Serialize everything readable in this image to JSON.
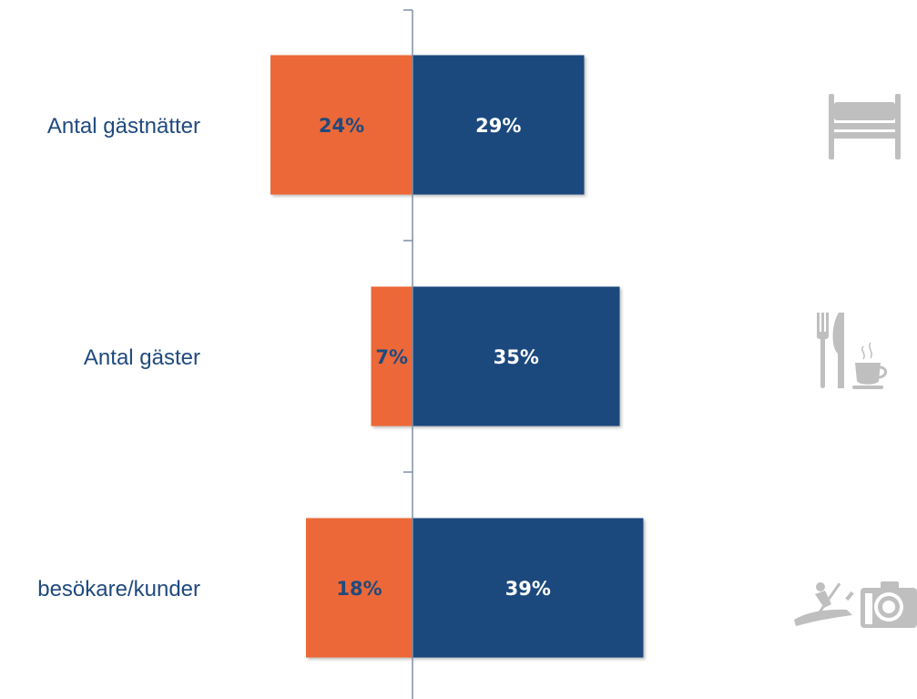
{
  "chart_data": {
    "type": "bar",
    "orientation": "horizontal-diverging",
    "categories": [
      "Antal gästnätter",
      "Antal gäster",
      "besökare/kunder"
    ],
    "series": [
      {
        "values": [
          24,
          7,
          18
        ],
        "direction": "left"
      },
      {
        "values": [
          29,
          35,
          39
        ],
        "direction": "right"
      }
    ],
    "value_labels": {
      "left": [
        "24%",
        "7%",
        "18%"
      ],
      "right": [
        "29%",
        "35%",
        "39%"
      ]
    },
    "scale_max": 50,
    "grid": false,
    "legend": "none"
  },
  "colors": {
    "left_bar": "#EC6839",
    "right_bar": "#1F4A7D",
    "left_label": "#1F4A7D",
    "right_label": "#FFFFFF",
    "category_label": "#1F4A7D",
    "axis": "#7F8FA6",
    "icon": "#BFBFBF"
  },
  "icons": [
    "bed-icon",
    "cutlery-coffee-icon",
    "kayak-camera-icon"
  ]
}
